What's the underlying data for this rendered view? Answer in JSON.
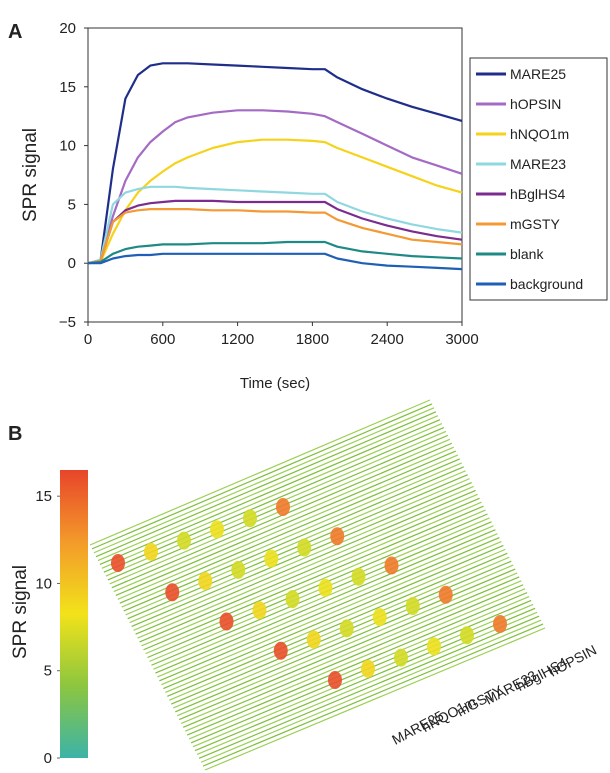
{
  "chart_data": [
    {
      "type": "line",
      "panel_label": "A",
      "ylabel": "SPR signal",
      "xlabel": "Time (sec)",
      "x": [
        0,
        100,
        200,
        300,
        400,
        500,
        600,
        700,
        800,
        1000,
        1200,
        1400,
        1600,
        1800,
        1900,
        2000,
        2200,
        2400,
        2600,
        2800,
        3000
      ],
      "xlim": [
        0,
        3000
      ],
      "xticks": [
        0,
        600,
        1200,
        1800,
        2400,
        3000
      ],
      "ylim": [
        -5,
        20
      ],
      "yticks": [
        {
          "value": -5,
          "label": "−5"
        },
        0,
        5,
        10,
        15,
        20
      ],
      "legend": "outside-right",
      "series": [
        {
          "name": "MARE25",
          "color": "#1f2e8a",
          "values": [
            0,
            0.2,
            8,
            14,
            16,
            16.8,
            17,
            17,
            17,
            16.9,
            16.8,
            16.7,
            16.6,
            16.5,
            16.5,
            15.8,
            14.8,
            14,
            13.3,
            12.7,
            12.1
          ]
        },
        {
          "name": "hOPSIN",
          "color": "#a46bc4",
          "values": [
            0,
            0.2,
            4,
            7,
            9,
            10.3,
            11.2,
            12,
            12.4,
            12.8,
            13,
            13,
            12.9,
            12.7,
            12.5,
            12,
            11,
            10,
            9,
            8.3,
            7.6
          ]
        },
        {
          "name": "hNQO1m",
          "color": "#f5d31a",
          "values": [
            0,
            0.1,
            2.5,
            4.5,
            6,
            7,
            7.8,
            8.5,
            9,
            9.8,
            10.3,
            10.5,
            10.5,
            10.4,
            10.3,
            9.8,
            9,
            8.2,
            7.4,
            6.6,
            6
          ]
        },
        {
          "name": "MARE23",
          "color": "#8fd8e0",
          "values": [
            0,
            0.3,
            5,
            6,
            6.3,
            6.5,
            6.5,
            6.5,
            6.4,
            6.3,
            6.2,
            6.1,
            6,
            5.9,
            5.9,
            5.2,
            4.4,
            3.8,
            3.3,
            2.9,
            2.6
          ]
        },
        {
          "name": "hBglHS4",
          "color": "#7a2c8f",
          "values": [
            0,
            0.2,
            3.5,
            4.5,
            4.9,
            5.1,
            5.2,
            5.3,
            5.3,
            5.3,
            5.2,
            5.2,
            5.2,
            5.2,
            5.2,
            4.6,
            3.8,
            3.2,
            2.7,
            2.3,
            2
          ]
        },
        {
          "name": "mGSTY",
          "color": "#f39a35",
          "values": [
            0,
            0.2,
            3.5,
            4.3,
            4.5,
            4.6,
            4.6,
            4.6,
            4.6,
            4.5,
            4.5,
            4.4,
            4.4,
            4.3,
            4.3,
            3.7,
            3,
            2.5,
            2,
            1.8,
            1.6
          ]
        },
        {
          "name": "blank",
          "color": "#1e8a85",
          "values": [
            0,
            0.1,
            0.8,
            1.2,
            1.4,
            1.5,
            1.6,
            1.6,
            1.6,
            1.7,
            1.7,
            1.7,
            1.8,
            1.8,
            1.8,
            1.4,
            1,
            0.8,
            0.6,
            0.5,
            0.4
          ]
        },
        {
          "name": "background",
          "color": "#1f5fb5",
          "values": [
            0,
            0,
            0.4,
            0.6,
            0.7,
            0.7,
            0.8,
            0.8,
            0.8,
            0.8,
            0.8,
            0.8,
            0.8,
            0.8,
            0.8,
            0.4,
            0,
            -0.2,
            -0.3,
            -0.4,
            -0.5
          ]
        }
      ]
    },
    {
      "type": "surface",
      "panel_label": "B",
      "colorbar_label": "SPR signal",
      "ylim": [
        0,
        16.5
      ],
      "yticks": [
        0,
        5,
        10,
        15
      ],
      "colorscale": [
        "#3cb3a8",
        "#8cc63f",
        "#f2e21a",
        "#f39a2a",
        "#e8452a"
      ],
      "rows": [
        {
          "name": "MARE25",
          "values": [
            16,
            16,
            16,
            16,
            16
          ]
        },
        {
          "name": "hNQO1m",
          "values": [
            9,
            9,
            9,
            9,
            9
          ]
        },
        {
          "name": "mGSTY",
          "values": [
            7,
            7,
            7,
            7,
            7
          ]
        },
        {
          "name": "MARE23",
          "values": [
            8,
            8,
            8,
            8,
            8
          ]
        },
        {
          "name": "hBglHS4",
          "values": [
            7,
            7,
            7,
            7,
            7
          ]
        },
        {
          "name": "hOPSIN",
          "values": [
            14,
            14,
            14,
            14,
            14
          ]
        }
      ]
    }
  ]
}
